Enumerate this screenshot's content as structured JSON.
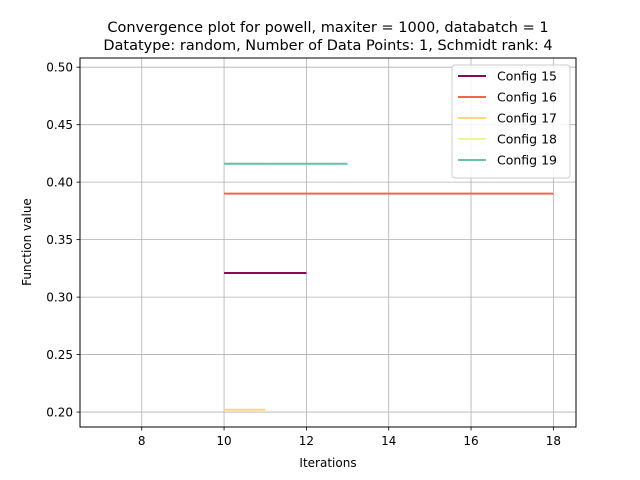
{
  "chart_data": {
    "type": "line",
    "title": "Convergence plot for powell, maxiter = 1000, databatch = 1",
    "subtitle": "Datatype: random, Number of Data Points: 1, Schmidt rank: 4",
    "xlabel": "Iterations",
    "ylabel": "Function value",
    "xlim": [
      6.5,
      18.55
    ],
    "ylim": [
      0.187,
      0.508
    ],
    "xticks": [
      8,
      10,
      12,
      14,
      16,
      18
    ],
    "yticks": [
      0.2,
      0.25,
      0.3,
      0.35,
      0.4,
      0.45,
      0.5
    ],
    "grid": true,
    "legend_position": "top-right",
    "series": [
      {
        "name": "Config 15",
        "color": "#8b0a50",
        "x": [
          10,
          11,
          12
        ],
        "y": [
          0.321,
          0.321,
          0.321
        ]
      },
      {
        "name": "Config 16",
        "color": "#e8694e",
        "x": [
          10,
          14,
          18
        ],
        "y": [
          0.39,
          0.39,
          0.39
        ]
      },
      {
        "name": "Config 17",
        "color": "#fdd57e",
        "x": [
          10,
          11
        ],
        "y": [
          0.202,
          0.202
        ]
      },
      {
        "name": "Config 18",
        "color": "#eef59a",
        "x": [
          10,
          11
        ],
        "y": [
          0.416,
          0.416
        ]
      },
      {
        "name": "Config 19",
        "color": "#66c2a5",
        "x": [
          10,
          11,
          12,
          13
        ],
        "y": [
          0.416,
          0.416,
          0.416,
          0.416
        ]
      }
    ]
  }
}
